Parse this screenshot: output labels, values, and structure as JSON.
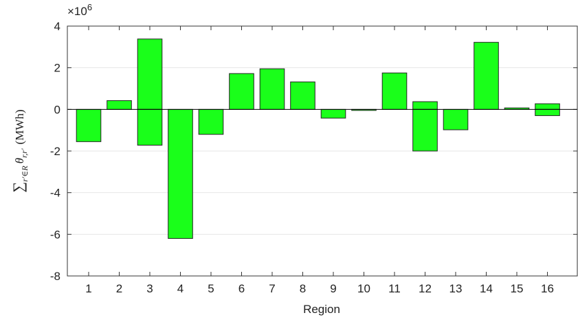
{
  "chart_data": {
    "type": "bar",
    "xlabel": "Region",
    "ylabel_sum": "∑",
    "ylabel_sum_sub": "r′∈R",
    "ylabel_theta": "θ",
    "ylabel_theta_sub": "r,r′",
    "ylabel_unit": "(MWh)",
    "y_scale_base": "×10",
    "y_scale_exponent": 6,
    "categories": [
      "1",
      "2",
      "3",
      "4",
      "5",
      "6",
      "7",
      "8",
      "9",
      "10",
      "11",
      "12",
      "13",
      "14",
      "15",
      "16"
    ],
    "series": [
      {
        "color": "#1aff1a",
        "values": [
          null,
          0.42,
          3.38,
          null,
          null,
          1.72,
          1.95,
          1.32,
          null,
          null,
          1.75,
          0.37,
          null,
          3.22,
          0.07,
          0.27
        ]
      },
      {
        "color": "#1aff1a",
        "values": [
          -1.55,
          null,
          -1.72,
          -6.2,
          -1.2,
          null,
          null,
          null,
          -0.42,
          -0.05,
          null,
          -2.0,
          -0.98,
          null,
          null,
          -0.3
        ]
      }
    ],
    "ylim": [
      -8,
      4
    ],
    "yticks": [
      -8,
      -6,
      -4,
      -2,
      0,
      2,
      4
    ],
    "grid": true
  }
}
